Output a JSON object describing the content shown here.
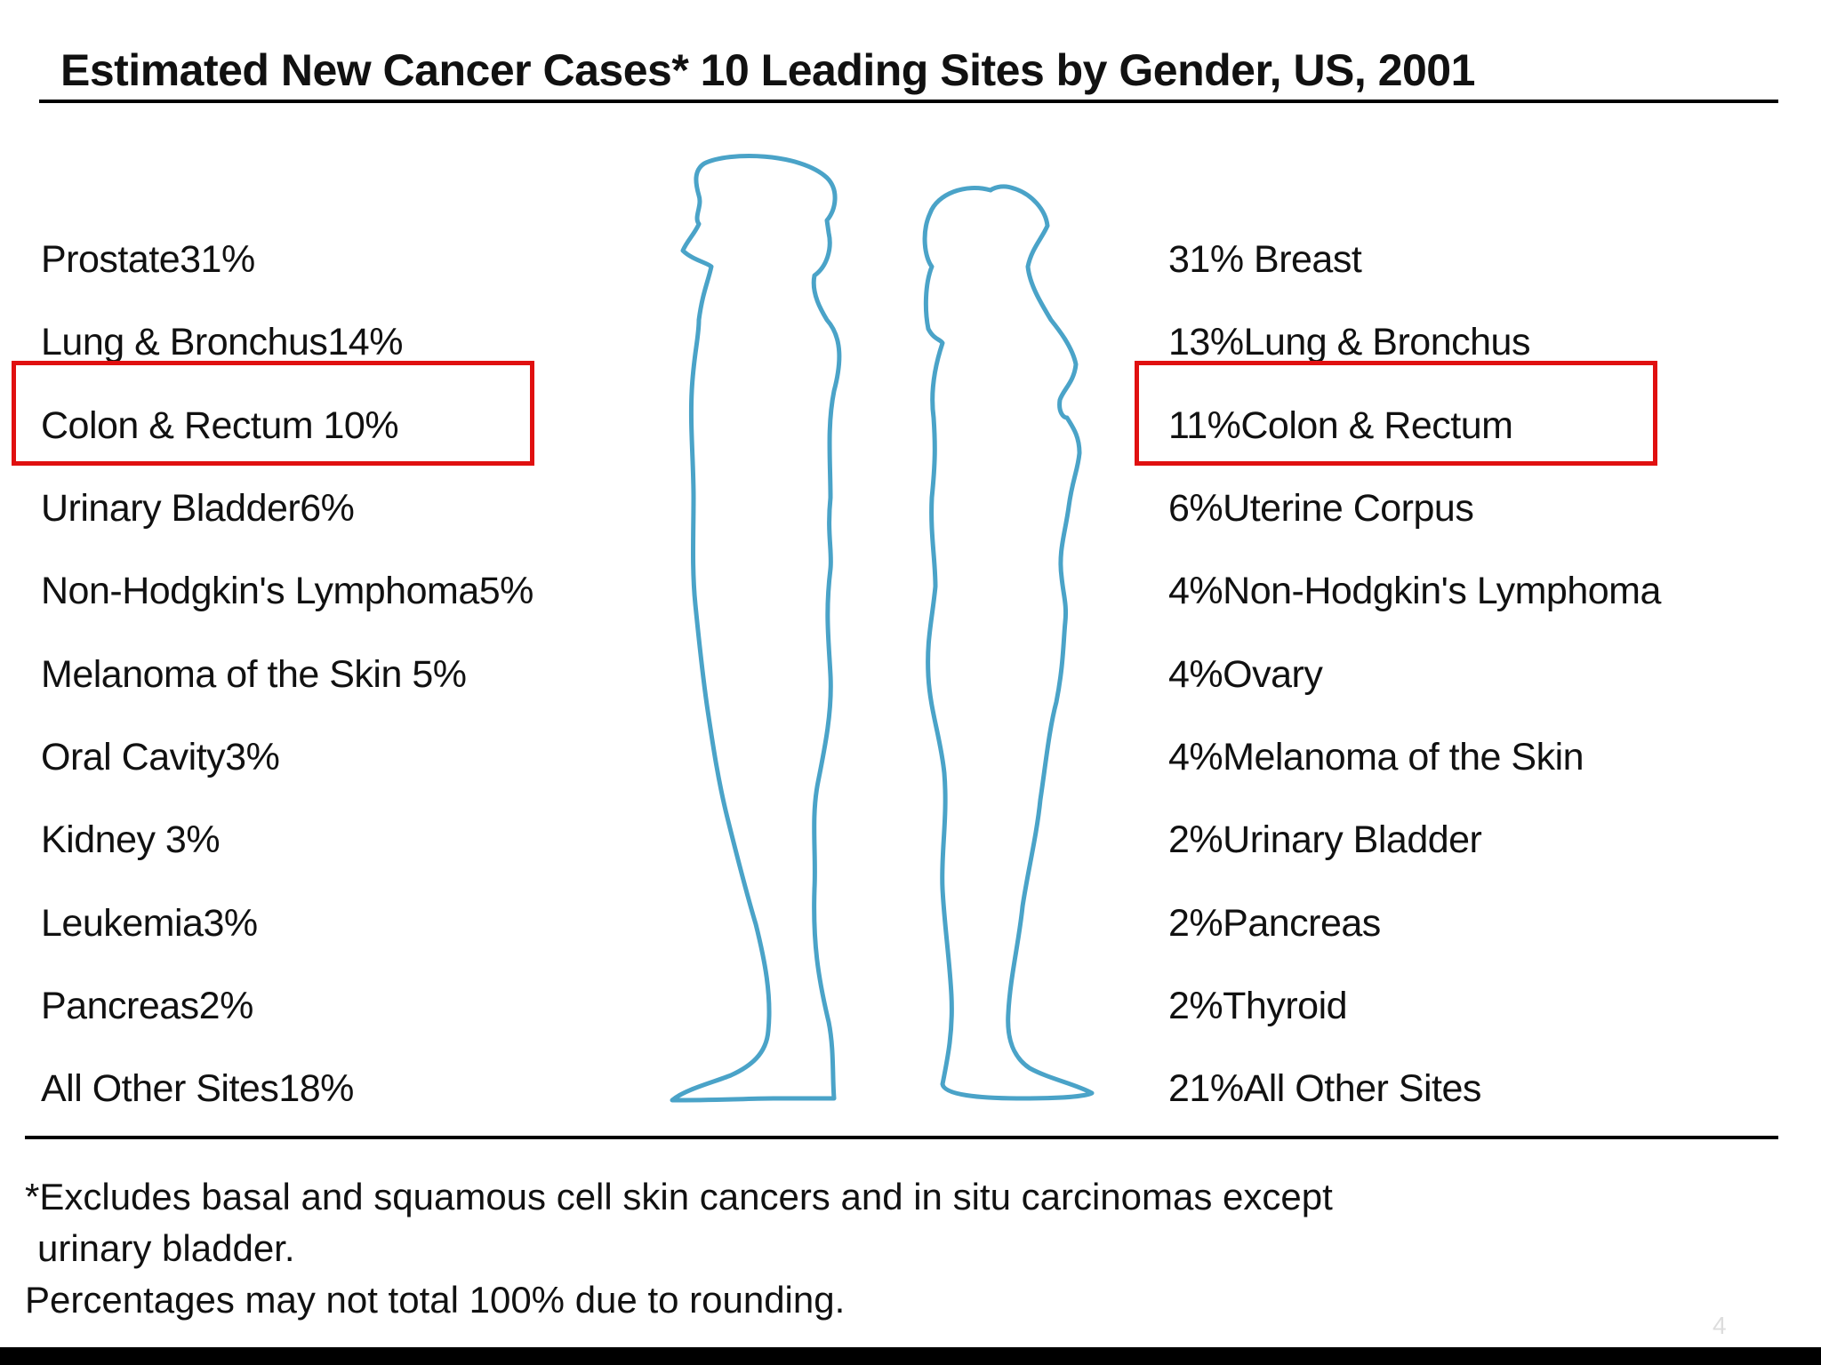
{
  "slide": {
    "title": "Estimated New Cancer Cases*  10 Leading Sites by Gender, US, 2001",
    "male": [
      "Prostate31%",
      "Lung & Bronchus14%",
      "Colon & Rectum 10%",
      "Urinary Bladder6%",
      "Non-Hodgkin's Lymphoma5%",
      "Melanoma of the Skin 5%",
      "Oral Cavity3%",
      "Kidney 3%",
      "Leukemia3%",
      "Pancreas2%",
      "All Other Sites18%"
    ],
    "female": [
      "31% Breast",
      "13%Lung & Bronchus",
      "11%Colon & Rectum",
      "6%Uterine Corpus",
      "4%Non-Hodgkin's Lymphoma",
      "4%Ovary",
      "4%Melanoma of the Skin",
      "2%Urinary Bladder",
      "2%Pancreas",
      "2%Thyroid",
      "21%All Other Sites"
    ],
    "highlighted_row": "Colon & Rectum",
    "highlight_color": "#e01010",
    "silhouette_color": "#4aa3c8",
    "footnote_line1": "*Excludes basal and squamous cell skin cancers and in situ carcinomas except",
    "footnote_line2": "urinary bladder.",
    "footnote_line3": "Percentages may not total 100% due to rounding.",
    "page_number": "4"
  }
}
